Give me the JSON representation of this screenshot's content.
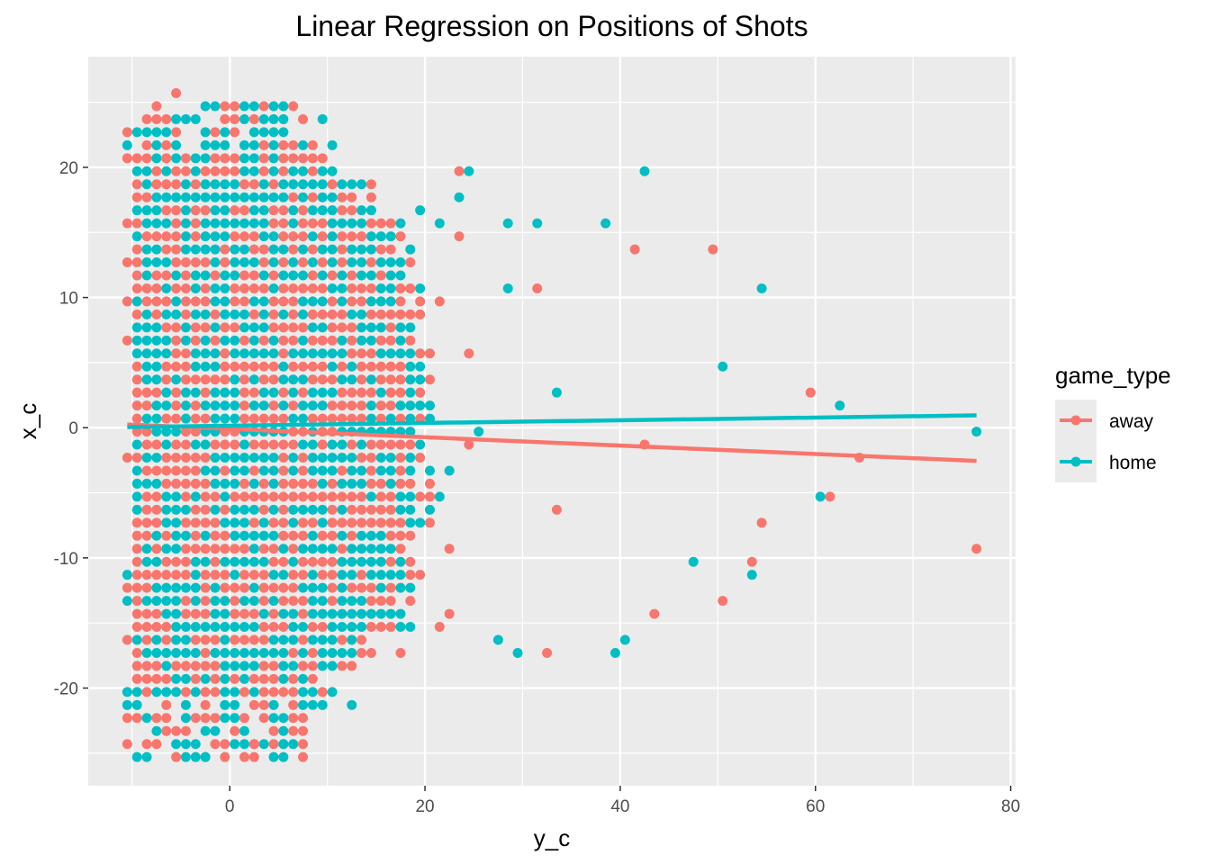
{
  "chart_data": {
    "type": "scatter",
    "title": "Linear Regression on Positions of Shots",
    "xlabel": "y_c",
    "ylabel": "x_c",
    "xlim": [
      -14.5,
      80.5
    ],
    "ylim": [
      -27.5,
      28.5
    ],
    "x_ticks": [
      0,
      20,
      40,
      60,
      80
    ],
    "y_ticks": [
      -20,
      -10,
      0,
      10,
      20
    ],
    "x_tick_labels": [
      "0",
      "20",
      "40",
      "60",
      "80"
    ],
    "y_tick_labels": [
      "-20",
      "-10",
      "0",
      "10",
      "20"
    ],
    "grid": true,
    "panel_background": "#ebebeb",
    "legend": {
      "title": "game_type",
      "position": "right",
      "entries": [
        "away",
        "home"
      ]
    },
    "series": [
      {
        "name": "away",
        "color": "#F8766D",
        "points": [
          [
            23.5,
            19.7
          ],
          [
            23.5,
            14.7
          ],
          [
            41.5,
            13.7
          ],
          [
            49.5,
            13.7
          ],
          [
            31.5,
            10.7
          ],
          [
            21.5,
            9.7
          ],
          [
            24.5,
            5.7
          ],
          [
            59.5,
            2.7
          ],
          [
            42.5,
            -1.3
          ],
          [
            24.5,
            -1.3
          ],
          [
            64.5,
            -2.3
          ],
          [
            61.5,
            -5.3
          ],
          [
            33.5,
            -6.3
          ],
          [
            54.5,
            -7.3
          ],
          [
            22.5,
            -9.3
          ],
          [
            76.5,
            -9.3
          ],
          [
            53.5,
            -10.3
          ],
          [
            50.5,
            -13.3
          ],
          [
            43.5,
            -14.3
          ],
          [
            22.5,
            -14.3
          ],
          [
            21.5,
            -15.3
          ],
          [
            32.5,
            -17.3
          ],
          [
            17.5,
            -17.3
          ],
          [
            -5.5,
            25.7
          ],
          [
            -10.5,
            6.7
          ],
          [
            -10.5,
            12.7
          ],
          [
            -10.5,
            15.7
          ],
          [
            -10.5,
            9.7
          ],
          [
            -10.5,
            -2.3
          ],
          [
            -10.5,
            -12.3
          ],
          [
            -10.5,
            -16.3
          ],
          [
            -10.5,
            -24.3
          ],
          [
            2.5,
            -24.3
          ]
        ],
        "fit": {
          "x": [
            -10.5,
            76.5
          ],
          "y": [
            0.25,
            -2.55
          ]
        }
      },
      {
        "name": "home",
        "color": "#00BFC4",
        "points": [
          [
            24.5,
            19.7
          ],
          [
            42.5,
            19.7
          ],
          [
            23.5,
            17.7
          ],
          [
            19.5,
            16.7
          ],
          [
            21.5,
            15.7
          ],
          [
            28.5,
            15.7
          ],
          [
            31.5,
            15.7
          ],
          [
            38.5,
            15.7
          ],
          [
            28.5,
            10.7
          ],
          [
            54.5,
            10.7
          ],
          [
            50.5,
            4.7
          ],
          [
            33.5,
            2.7
          ],
          [
            62.5,
            1.7
          ],
          [
            25.5,
            -0.3
          ],
          [
            76.5,
            -0.3
          ],
          [
            22.5,
            -3.3
          ],
          [
            21.5,
            -5.3
          ],
          [
            60.5,
            -5.3
          ],
          [
            47.5,
            -10.3
          ],
          [
            53.5,
            -11.3
          ],
          [
            27.5,
            -16.3
          ],
          [
            40.5,
            -16.3
          ],
          [
            29.5,
            -17.3
          ],
          [
            39.5,
            -17.3
          ],
          [
            9.5,
            23.7
          ],
          [
            12.5,
            -21.3
          ],
          [
            5.5,
            -24.3
          ],
          [
            -10.5,
            -11.3
          ],
          [
            -10.5,
            -13.3
          ],
          [
            -2.5,
            24.7
          ],
          [
            -2.5,
            -25.3
          ],
          [
            -8.5,
            -25.3
          ],
          [
            -9.5,
            -25.3
          ]
        ],
        "fit": {
          "x": [
            -10.5,
            76.5
          ],
          "y": [
            0.05,
            0.95
          ]
        }
      }
    ]
  }
}
